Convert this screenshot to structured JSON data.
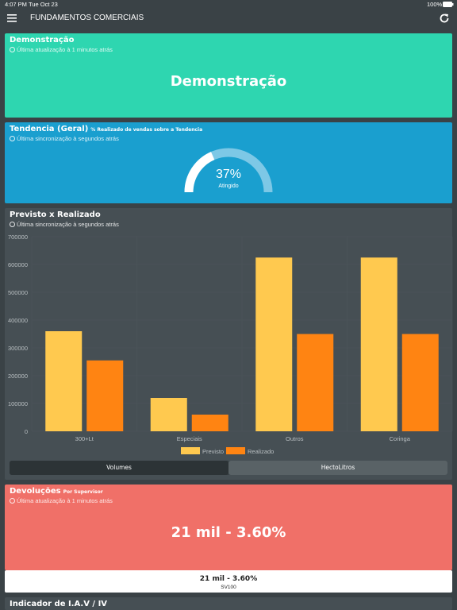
{
  "status_bar": {
    "time": "4:07 PM",
    "date": "Tue Oct 23",
    "battery": "100%"
  },
  "header": {
    "title": "FUNDAMENTOS COMERCIAIS"
  },
  "demo_card": {
    "title": "Demonstração",
    "updated": "Última atualização à 1 minutos atrás",
    "headline": "Demonstração"
  },
  "trend_card": {
    "title": "Tendencia (Geral)",
    "subtitle": "% Realizado de vendas sobre a Tendencia",
    "updated": "Última sincronização à segundos atrás",
    "gauge": {
      "value": 37,
      "label": "37%",
      "caption": "Atingido"
    }
  },
  "chart_card": {
    "title": "Previsto x Realizado",
    "updated": "Última sincronização à segundos atrás",
    "tabs": [
      "Volumes",
      "HectoLitros"
    ]
  },
  "chart_data": {
    "type": "bar",
    "categories": [
      "300+Lt",
      "Especiais",
      "Outros",
      "Coringa"
    ],
    "series": [
      {
        "name": "Previsto",
        "color": "#ffc94f",
        "values": [
          360000,
          120000,
          625000,
          625000
        ]
      },
      {
        "name": "Realizado",
        "color": "#ff8412",
        "values": [
          255000,
          60000,
          350000,
          350000
        ]
      }
    ],
    "ylim": [
      0,
      700000
    ],
    "yticks": [
      0,
      100000,
      200000,
      300000,
      400000,
      500000,
      600000,
      700000
    ],
    "grid": true
  },
  "returns_card": {
    "title": "Devoluções",
    "subtitle": "Por Supervisor",
    "updated": "Última atualização à 1 minutos atrás",
    "headline": "21 mil - 3.60%",
    "footer": {
      "value": "21 mil - 3.60%",
      "label": "SV100"
    }
  },
  "next_card": {
    "title": "Indicador de I.A.V / IV"
  }
}
